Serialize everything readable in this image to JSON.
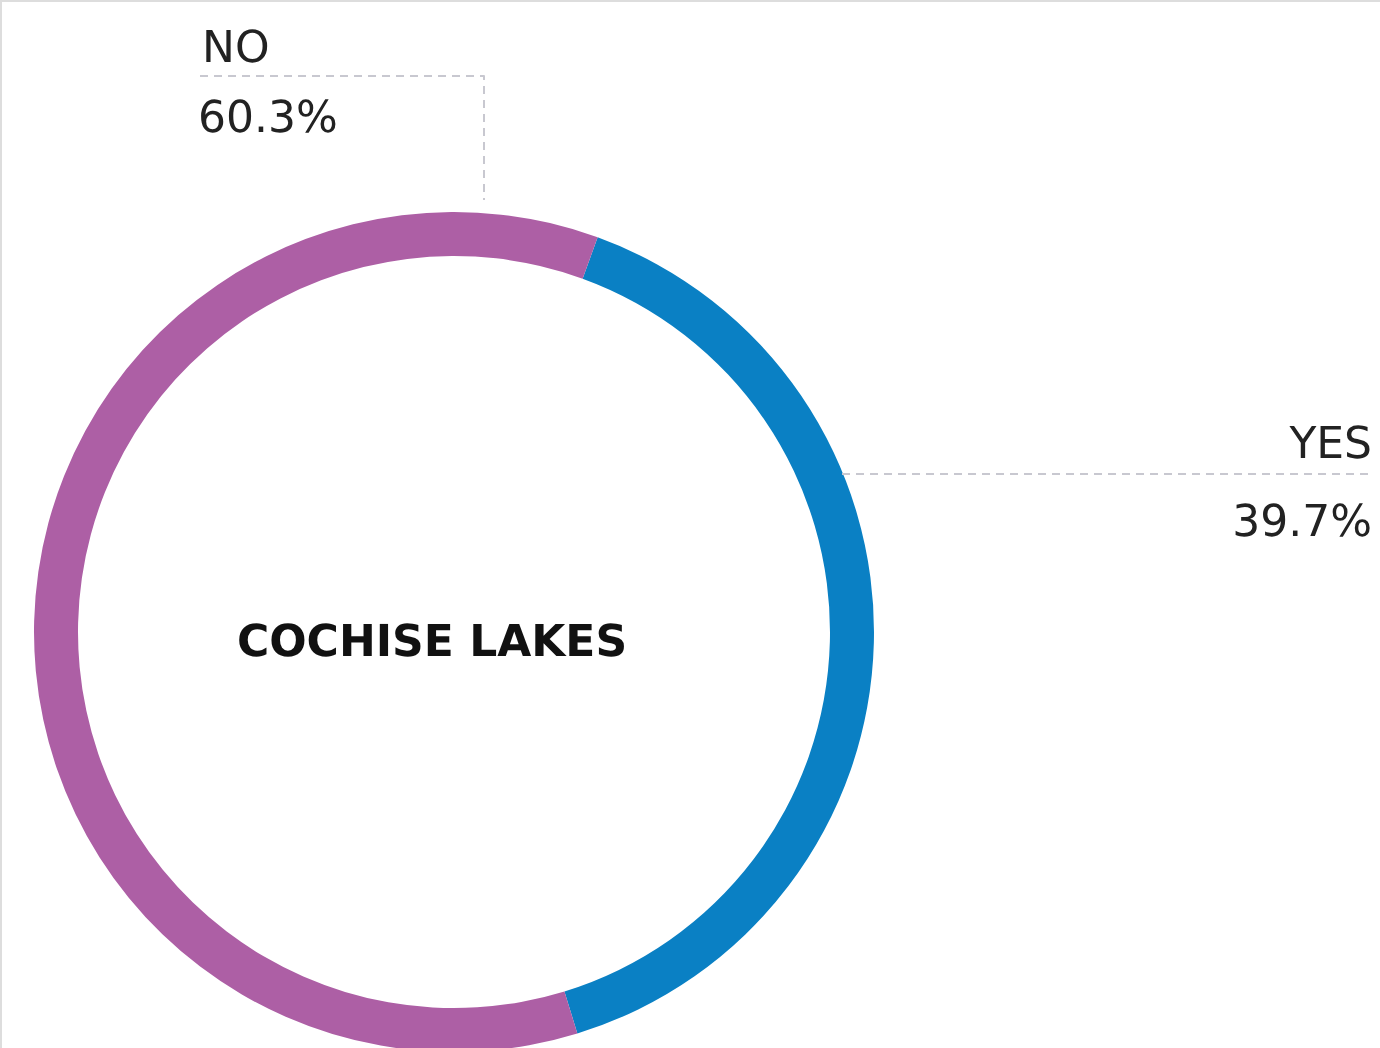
{
  "chart_data": {
    "type": "donut",
    "title": "COCHISE LAKES",
    "categories": [
      "YES",
      "NO"
    ],
    "values": [
      39.7,
      60.3
    ],
    "colors": [
      "#0a80c4",
      "#ad5fa5"
    ],
    "value_labels": [
      "39.7%",
      "60.3%"
    ]
  }
}
